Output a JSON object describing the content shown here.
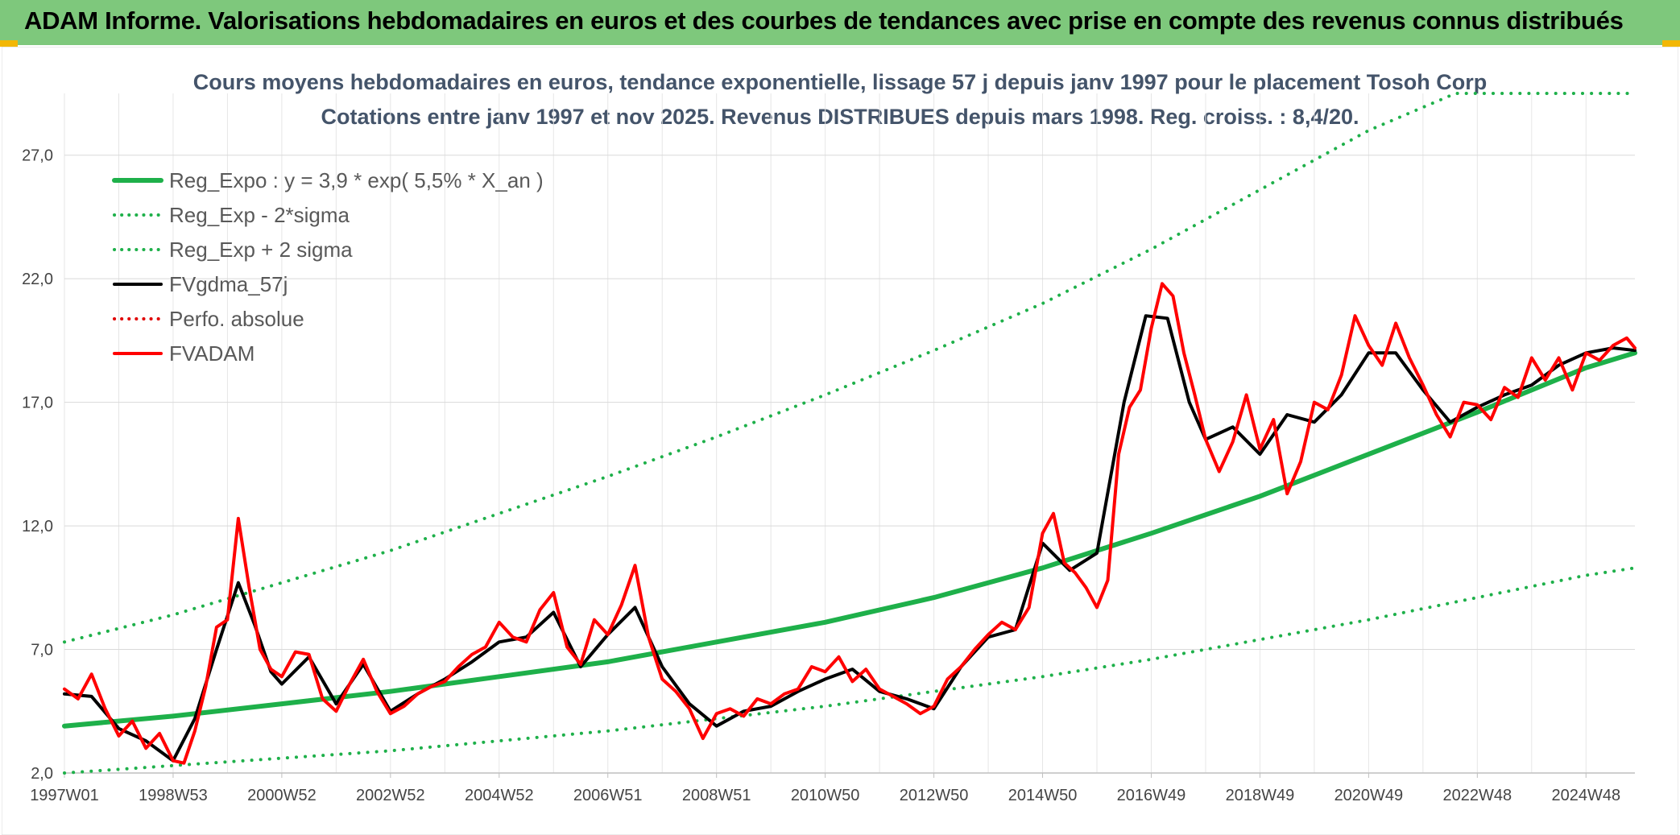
{
  "header": {
    "title": "ADAM Informe. Valorisations hebdomadaires en euros et des courbes de tendances avec prise en compte des revenus connus distribués"
  },
  "chart_data": {
    "type": "line",
    "title": "Cours moyens hebdomadaires en euros, tendance exponentielle, lissage 57 j depuis janv 1997 pour le placement Tosoh Corp",
    "subtitle": "Cotations entre janv 1997 et nov 2025. Revenus DISTRIBUES depuis mars 1998. Reg. croiss. : 8,4/20.",
    "xlabel": "",
    "ylabel": "",
    "xlim": [
      1997.0,
      2025.9
    ],
    "ylim": [
      2.0,
      29.5
    ],
    "x_ticks": [
      {
        "x": 1997.0,
        "label": "1997W01"
      },
      {
        "x": 1999.0,
        "label": "1998W53"
      },
      {
        "x": 2001.0,
        "label": "2000W52"
      },
      {
        "x": 2003.0,
        "label": "2002W52"
      },
      {
        "x": 2005.0,
        "label": "2004W52"
      },
      {
        "x": 2007.0,
        "label": "2006W51"
      },
      {
        "x": 2009.0,
        "label": "2008W51"
      },
      {
        "x": 2011.0,
        "label": "2010W50"
      },
      {
        "x": 2013.0,
        "label": "2012W50"
      },
      {
        "x": 2015.0,
        "label": "2014W50"
      },
      {
        "x": 2017.0,
        "label": "2016W49"
      },
      {
        "x": 2019.0,
        "label": "2018W49"
      },
      {
        "x": 2021.0,
        "label": "2020W49"
      },
      {
        "x": 2023.0,
        "label": "2022W48"
      },
      {
        "x": 2025.0,
        "label": "2024W48"
      }
    ],
    "y_ticks": [
      {
        "y": 2,
        "label": "2,0"
      },
      {
        "y": 7,
        "label": "7,0"
      },
      {
        "y": 12,
        "label": "12,0"
      },
      {
        "y": 17,
        "label": "17,0"
      },
      {
        "y": 22,
        "label": "22,0"
      },
      {
        "y": 27,
        "label": "27,0"
      }
    ],
    "legend_position": "top-left",
    "series": [
      {
        "name": "Reg_Expo : y = 3,9 * exp( 5,5% *  X_an )",
        "color": "#1eb04a",
        "style": "solid",
        "width": 6,
        "x": [
          1997.0,
          1999.0,
          2001.0,
          2003.0,
          2005.0,
          2007.0,
          2009.0,
          2011.0,
          2013.0,
          2015.0,
          2017.0,
          2019.0,
          2021.0,
          2023.0,
          2025.0,
          2025.9
        ],
        "values": [
          3.9,
          4.3,
          4.8,
          5.3,
          5.9,
          6.5,
          7.3,
          8.1,
          9.1,
          10.3,
          11.7,
          13.2,
          14.9,
          16.6,
          18.4,
          19.0
        ]
      },
      {
        "name": "Reg_Exp - 2*sigma",
        "color": "#1eb04a",
        "style": "dotted",
        "width": 4,
        "x": [
          1997.0,
          1999.0,
          2001.0,
          2003.0,
          2005.0,
          2007.0,
          2009.0,
          2011.0,
          2013.0,
          2015.0,
          2017.0,
          2019.0,
          2021.0,
          2023.0,
          2025.0,
          2025.9
        ],
        "values": [
          2.0,
          2.3,
          2.6,
          2.9,
          3.3,
          3.7,
          4.2,
          4.7,
          5.3,
          5.9,
          6.6,
          7.4,
          8.2,
          9.1,
          10.0,
          10.3
        ]
      },
      {
        "name": "Reg_Exp + 2 sigma",
        "color": "#1eb04a",
        "style": "dotted",
        "width": 4,
        "x": [
          1997.0,
          1999.0,
          2001.0,
          2003.0,
          2005.0,
          2007.0,
          2009.0,
          2011.0,
          2013.0,
          2015.0,
          2017.0,
          2019.0,
          2021.0,
          2022.6,
          2025.9
        ],
        "values": [
          7.3,
          8.4,
          9.7,
          11.0,
          12.5,
          14.0,
          15.6,
          17.3,
          19.1,
          21.0,
          23.2,
          25.6,
          28.0,
          29.5,
          29.5
        ]
      },
      {
        "name": "FVgdma_57j",
        "color": "#000000",
        "style": "solid",
        "width": 4,
        "x": [
          1997.0,
          1997.5,
          1998.0,
          1998.5,
          1999.0,
          1999.4,
          1999.8,
          2000.2,
          2000.5,
          2000.8,
          2001.0,
          2001.5,
          2002.0,
          2002.5,
          2003.0,
          2003.5,
          2004.0,
          2004.5,
          2005.0,
          2005.5,
          2006.0,
          2006.5,
          2007.0,
          2007.5,
          2008.0,
          2008.5,
          2009.0,
          2009.5,
          2010.0,
          2010.5,
          2011.0,
          2011.5,
          2012.0,
          2012.5,
          2013.0,
          2013.5,
          2014.0,
          2014.5,
          2015.0,
          2015.5,
          2016.0,
          2016.5,
          2016.9,
          2017.3,
          2017.7,
          2018.0,
          2018.5,
          2019.0,
          2019.5,
          2020.0,
          2020.5,
          2021.0,
          2021.5,
          2022.0,
          2022.5,
          2023.0,
          2023.5,
          2024.0,
          2024.5,
          2025.0,
          2025.5,
          2025.9
        ],
        "values": [
          5.2,
          5.1,
          3.8,
          3.3,
          2.5,
          4.2,
          7.0,
          9.7,
          8.0,
          6.1,
          5.6,
          6.7,
          4.8,
          6.4,
          4.5,
          5.2,
          5.8,
          6.5,
          7.3,
          7.5,
          8.5,
          6.3,
          7.6,
          8.7,
          6.3,
          4.8,
          3.9,
          4.5,
          4.7,
          5.3,
          5.8,
          6.2,
          5.3,
          5.0,
          4.6,
          6.3,
          7.5,
          7.8,
          11.3,
          10.2,
          10.9,
          17.0,
          20.5,
          20.4,
          17.0,
          15.5,
          16.0,
          14.9,
          16.5,
          16.2,
          17.3,
          19.0,
          19.0,
          17.5,
          16.2,
          16.8,
          17.3,
          17.7,
          18.5,
          19.0,
          19.2,
          19.1
        ]
      },
      {
        "name": "Perfo. absolue",
        "color": "#e00000",
        "style": "dotted",
        "width": 3,
        "x": [],
        "values": []
      },
      {
        "name": "FVADAM",
        "color": "#ff0000",
        "style": "solid",
        "width": 4,
        "x": [
          1997.0,
          1997.25,
          1997.5,
          1997.75,
          1998.0,
          1998.25,
          1998.5,
          1998.75,
          1999.0,
          1999.2,
          1999.4,
          1999.6,
          1999.8,
          2000.0,
          2000.2,
          2000.4,
          2000.6,
          2000.8,
          2001.0,
          2001.25,
          2001.5,
          2001.75,
          2002.0,
          2002.25,
          2002.5,
          2002.75,
          2003.0,
          2003.25,
          2003.5,
          2003.75,
          2004.0,
          2004.25,
          2004.5,
          2004.75,
          2005.0,
          2005.25,
          2005.5,
          2005.75,
          2006.0,
          2006.25,
          2006.5,
          2006.75,
          2007.0,
          2007.25,
          2007.5,
          2007.75,
          2008.0,
          2008.25,
          2008.5,
          2008.75,
          2009.0,
          2009.25,
          2009.5,
          2009.75,
          2010.0,
          2010.25,
          2010.5,
          2010.75,
          2011.0,
          2011.25,
          2011.5,
          2011.75,
          2012.0,
          2012.25,
          2012.5,
          2012.75,
          2013.0,
          2013.25,
          2013.5,
          2013.75,
          2014.0,
          2014.25,
          2014.5,
          2014.75,
          2015.0,
          2015.2,
          2015.4,
          2015.6,
          2015.8,
          2016.0,
          2016.2,
          2016.4,
          2016.6,
          2016.8,
          2017.0,
          2017.2,
          2017.4,
          2017.6,
          2017.8,
          2018.0,
          2018.25,
          2018.5,
          2018.75,
          2019.0,
          2019.25,
          2019.5,
          2019.75,
          2020.0,
          2020.25,
          2020.5,
          2020.75,
          2021.0,
          2021.25,
          2021.5,
          2021.75,
          2022.0,
          2022.25,
          2022.5,
          2022.75,
          2023.0,
          2023.25,
          2023.5,
          2023.75,
          2024.0,
          2024.25,
          2024.5,
          2024.75,
          2025.0,
          2025.25,
          2025.5,
          2025.75,
          2025.9
        ],
        "values": [
          5.4,
          5.0,
          6.0,
          4.6,
          3.5,
          4.1,
          3.0,
          3.6,
          2.5,
          2.4,
          3.7,
          5.5,
          7.9,
          8.2,
          12.3,
          9.5,
          7.0,
          6.2,
          5.9,
          6.9,
          6.8,
          5.0,
          4.5,
          5.6,
          6.6,
          5.3,
          4.4,
          4.7,
          5.2,
          5.5,
          5.7,
          6.3,
          6.8,
          7.1,
          8.1,
          7.5,
          7.3,
          8.6,
          9.3,
          7.1,
          6.4,
          8.2,
          7.6,
          8.8,
          10.4,
          7.5,
          5.8,
          5.3,
          4.6,
          3.4,
          4.4,
          4.6,
          4.3,
          5.0,
          4.8,
          5.2,
          5.4,
          6.3,
          6.1,
          6.7,
          5.7,
          6.2,
          5.4,
          5.1,
          4.8,
          4.4,
          4.7,
          5.8,
          6.3,
          7.0,
          7.6,
          8.1,
          7.8,
          8.7,
          11.7,
          12.5,
          10.5,
          10.1,
          9.5,
          8.7,
          9.8,
          14.9,
          16.8,
          17.5,
          20.0,
          21.8,
          21.3,
          19.0,
          17.3,
          15.5,
          14.2,
          15.4,
          17.3,
          15.1,
          16.3,
          13.3,
          14.6,
          17.0,
          16.7,
          18.1,
          20.5,
          19.3,
          18.5,
          20.2,
          18.8,
          17.7,
          16.5,
          15.6,
          17.0,
          16.9,
          16.3,
          17.6,
          17.2,
          18.8,
          17.9,
          18.8,
          17.5,
          19.0,
          18.7,
          19.3,
          19.6,
          19.2
        ]
      }
    ]
  }
}
